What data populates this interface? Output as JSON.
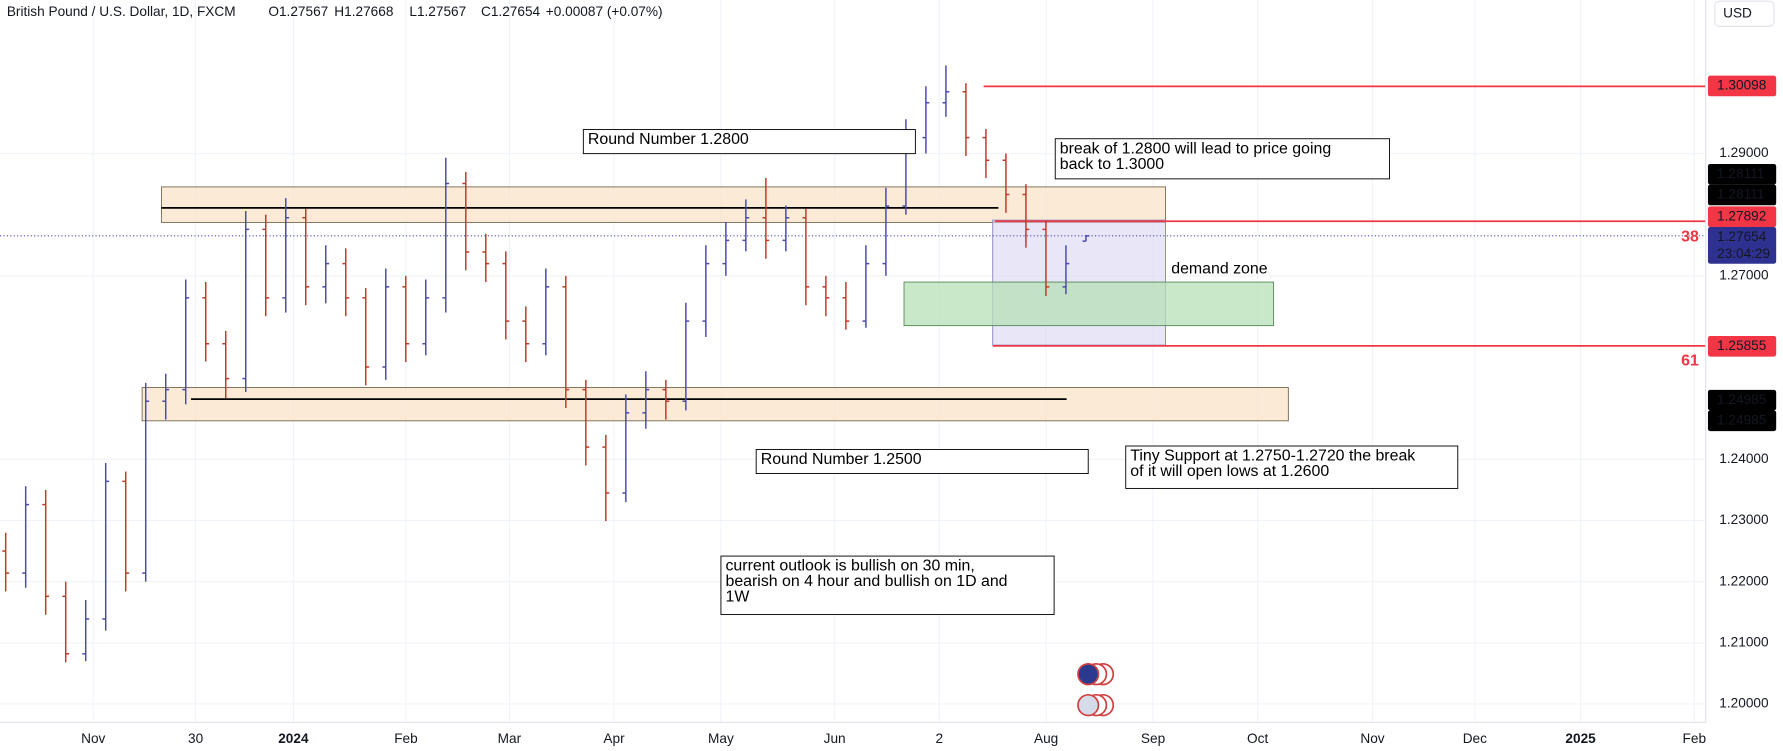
{
  "chart_data": {
    "type": "ohlc",
    "title": "British Pound / U.S. Dollar, 1D, FXCM",
    "legend_values": [
      "O1.27567",
      "H1.27668",
      "L1.27567",
      "C1.27654",
      "+0.00087 (+0.07%)"
    ],
    "currency": "USD",
    "up_color": "#4a4ab0",
    "down_color": "#c0392b",
    "ylim": [
      1.197,
      1.3151
    ],
    "yticks": [
      {
        "value": 1.2,
        "label": "1.20000"
      },
      {
        "value": 1.21,
        "label": "1.21000"
      },
      {
        "value": 1.22,
        "label": "1.22000"
      },
      {
        "value": 1.23,
        "label": "1.23000"
      },
      {
        "value": 1.24,
        "label": "1.24000"
      },
      {
        "value": 1.27,
        "label": "1.27000"
      },
      {
        "value": 1.29,
        "label": "1.29000"
      }
    ],
    "grid": true,
    "x_labels": [
      "Nov",
      "30",
      "2024",
      "Feb",
      "Mar",
      "Apr",
      "May",
      "Jun",
      "2",
      "Aug",
      "Sep",
      "Oct",
      "Nov",
      "Dec",
      "2025",
      "Feb"
    ],
    "values": [
      [
        1.225,
        1.228,
        1.2184,
        1.2214
      ],
      [
        1.2214,
        1.2356,
        1.219,
        1.2326
      ],
      [
        1.2326,
        1.235,
        1.2146,
        1.2176
      ],
      [
        1.2176,
        1.22,
        1.2068,
        1.2082
      ],
      [
        1.2082,
        1.217,
        1.207,
        1.2139
      ],
      [
        1.2139,
        1.2394,
        1.212,
        1.2364
      ],
      [
        1.2364,
        1.238,
        1.2184,
        1.2214
      ],
      [
        1.2214,
        1.2525,
        1.22,
        1.2495
      ],
      [
        1.2495,
        1.254,
        1.2465,
        1.2514
      ],
      [
        1.2514,
        1.2694,
        1.249,
        1.2664
      ],
      [
        1.2664,
        1.269,
        1.256,
        1.2589
      ],
      [
        1.2589,
        1.261,
        1.25,
        1.2532
      ],
      [
        1.2532,
        1.2806,
        1.251,
        1.2776
      ],
      [
        1.2776,
        1.28,
        1.2634,
        1.2664
      ],
      [
        1.2664,
        1.2827,
        1.264,
        1.2795
      ],
      [
        1.2795,
        1.281,
        1.2652,
        1.2682
      ],
      [
        1.2682,
        1.275,
        1.2655,
        1.272
      ],
      [
        1.272,
        1.2745,
        1.2634,
        1.2664
      ],
      [
        1.2664,
        1.268,
        1.2521,
        1.2551
      ],
      [
        1.2551,
        1.2712,
        1.253,
        1.2682
      ],
      [
        1.2682,
        1.27,
        1.2559,
        1.2589
      ],
      [
        1.2589,
        1.2694,
        1.257,
        1.2664
      ],
      [
        1.2664,
        1.2893,
        1.264,
        1.2851
      ],
      [
        1.2851,
        1.287,
        1.2709,
        1.2739
      ],
      [
        1.2739,
        1.2769,
        1.269,
        1.272
      ],
      [
        1.272,
        1.274,
        1.2596,
        1.2626
      ],
      [
        1.2626,
        1.265,
        1.2559,
        1.2589
      ],
      [
        1.2589,
        1.2712,
        1.257,
        1.2682
      ],
      [
        1.2682,
        1.27,
        1.2484,
        1.2514
      ],
      [
        1.2514,
        1.253,
        1.239,
        1.242
      ],
      [
        1.242,
        1.244,
        1.2299,
        1.2345
      ],
      [
        1.2345,
        1.2506,
        1.233,
        1.2476
      ],
      [
        1.2476,
        1.2544,
        1.245,
        1.2514
      ],
      [
        1.2514,
        1.253,
        1.2465,
        1.2495
      ],
      [
        1.2495,
        1.2656,
        1.248,
        1.2626
      ],
      [
        1.2626,
        1.275,
        1.26,
        1.272
      ],
      [
        1.272,
        1.2788,
        1.27,
        1.2758
      ],
      [
        1.2758,
        1.2825,
        1.274,
        1.2795
      ],
      [
        1.2795,
        1.286,
        1.2728,
        1.2758
      ],
      [
        1.2758,
        1.2815,
        1.274,
        1.2795
      ],
      [
        1.2795,
        1.281,
        1.2652,
        1.2682
      ],
      [
        1.2682,
        1.27,
        1.2634,
        1.2664
      ],
      [
        1.2664,
        1.269,
        1.2612,
        1.2626
      ],
      [
        1.2626,
        1.275,
        1.2615,
        1.272
      ],
      [
        1.272,
        1.2844,
        1.27,
        1.2814
      ],
      [
        1.2814,
        1.2956,
        1.28,
        1.2926
      ],
      [
        1.2926,
        1.301,
        1.29,
        1.2983
      ],
      [
        1.2983,
        1.3044,
        1.296,
        1.3001
      ],
      [
        1.3001,
        1.3015,
        1.2896,
        1.2926
      ],
      [
        1.2926,
        1.294,
        1.286,
        1.2889
      ],
      [
        1.2889,
        1.29,
        1.2803,
        1.2833
      ],
      [
        1.2833,
        1.285,
        1.2746,
        1.2776
      ],
      [
        1.2776,
        1.279,
        1.2667,
        1.2682
      ],
      [
        1.2682,
        1.275,
        1.267,
        1.272
      ],
      [
        1.27567,
        1.27668,
        1.27567,
        1.27654
      ]
    ],
    "price_labels": [
      {
        "value": 1.30098,
        "color": "#f23645"
      },
      {
        "value": 1.28111,
        "color": "#000000"
      },
      {
        "value": 1.28111,
        "color": "#000000"
      },
      {
        "value": 1.27892,
        "color": "#f23645"
      },
      {
        "value": 1.27654,
        "color": "#2f3190",
        "countdown": "23:04:29"
      },
      {
        "value": 1.25855,
        "color": "#f23645"
      },
      {
        "value": 1.24985,
        "color": "#000000"
      },
      {
        "value": 1.24985,
        "color": "#000000"
      }
    ],
    "fib_labels": [
      "38",
      "61"
    ],
    "annotations": [
      {
        "lines": [
          "Round Number 1.2800"
        ]
      },
      {
        "lines": [
          "break of 1.2800 will lead to price going",
          "back to 1.3000"
        ]
      },
      {
        "lines": [
          "Round Number 1.2500"
        ]
      },
      {
        "lines": [
          "Tiny Support at 1.2750-1.2720 the break",
          "of it will open lows at 1.2600"
        ]
      },
      {
        "lines": [
          "current outlook is bullish on 30 min,",
          "bearish on 4 hour and bullish on 1D and",
          "1W"
        ]
      },
      {
        "lines": [
          "demand zone"
        ]
      }
    ]
  }
}
